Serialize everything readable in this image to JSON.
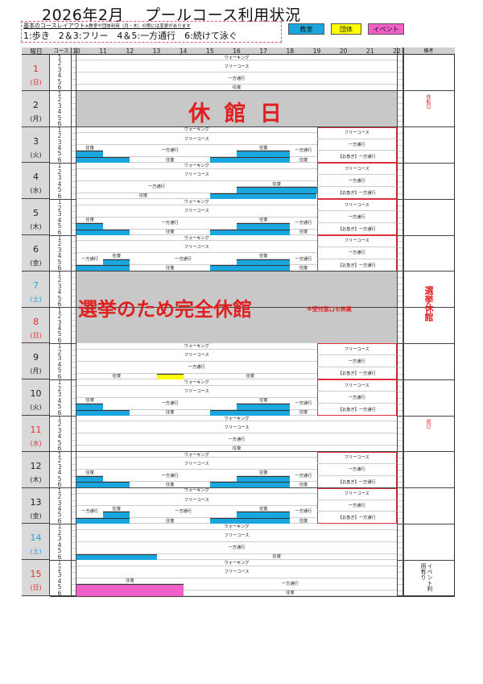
{
  "title": "2026年2月　 プールコース利用状況",
  "legend": {
    "heading": "基本のコースレイアウト",
    "note": "※教室や団体利用（月・木）の際には変更があります",
    "layout": "1:歩き　2＆3:フリー　4＆5:一方通行　6:続けて泳ぐ",
    "keys": [
      {
        "label": "教室",
        "color": "#1aa7e0"
      },
      {
        "label": "団体",
        "color": "#ffff00"
      },
      {
        "label": "イベント",
        "color": "#f060c8"
      }
    ]
  },
  "header": {
    "day": "曜日",
    "course": "コース",
    "hours": [
      10,
      11,
      12,
      13,
      14,
      15,
      16,
      17,
      18,
      19,
      20,
      21,
      22
    ],
    "remarks": "備考"
  },
  "lanes": [
    "1",
    "2",
    "3",
    "4",
    "5",
    "6"
  ],
  "colors": {
    "sunday": "#e53030",
    "saturday": "#2aa0e0",
    "weekday": "#222222",
    "closed": "#c8c8c8",
    "alert": "#e02020"
  },
  "patterns": {
    "standard": [
      {
        "lanes": [
          1,
          1
        ],
        "from": 10,
        "to": 22,
        "label": "ウォーキング"
      },
      {
        "lanes": [
          2,
          3
        ],
        "from": 10,
        "to": 22,
        "label": "フリーコース"
      },
      {
        "lanes": [
          4,
          5
        ],
        "from": 10,
        "to": 22,
        "label": "一方通行"
      },
      {
        "lanes": [
          6,
          6
        ],
        "from": 10,
        "to": 22,
        "label": "往復"
      }
    ],
    "tue_thu": [
      {
        "lanes": [
          1,
          1
        ],
        "from": 10,
        "to": 19,
        "label": "ウォーキング"
      },
      {
        "lanes": [
          2,
          3
        ],
        "from": 10,
        "to": 19,
        "label": "フリーコース"
      },
      {
        "lanes": [
          4,
          4
        ],
        "from": 10,
        "to": 11,
        "label": "往復"
      },
      {
        "lanes": [
          5,
          5
        ],
        "from": 10,
        "to": 11,
        "fill": "class"
      },
      {
        "lanes": [
          6,
          6
        ],
        "from": 10,
        "to": 12,
        "fill": "class"
      },
      {
        "lanes": [
          4,
          5
        ],
        "from": 11,
        "to": 16,
        "label": "一方通行"
      },
      {
        "lanes": [
          6,
          6
        ],
        "from": 12,
        "to": 15,
        "label": "往復"
      },
      {
        "lanes": [
          4,
          4
        ],
        "from": 16,
        "to": 18,
        "label": "往復"
      },
      {
        "lanes": [
          5,
          5
        ],
        "from": 16,
        "to": 18,
        "fill": "class"
      },
      {
        "lanes": [
          6,
          6
        ],
        "from": 15,
        "to": 18,
        "fill": "class"
      },
      {
        "lanes": [
          4,
          5
        ],
        "from": 18,
        "to": 19,
        "label": "一方通行"
      },
      {
        "lanes": [
          6,
          6
        ],
        "from": 18,
        "to": 19,
        "label": "往復"
      }
    ],
    "wed": [
      {
        "lanes": [
          1,
          1
        ],
        "from": 10,
        "to": 19,
        "label": "ウォーキング"
      },
      {
        "lanes": [
          2,
          3
        ],
        "from": 10,
        "to": 19,
        "label": "フリーコース"
      },
      {
        "lanes": [
          4,
          5
        ],
        "from": 10,
        "to": 16,
        "label": "一方通行"
      },
      {
        "lanes": [
          6,
          6
        ],
        "from": 10,
        "to": 15,
        "label": "往復"
      },
      {
        "lanes": [
          4,
          4
        ],
        "from": 16,
        "to": 19,
        "label": "往復"
      },
      {
        "lanes": [
          5,
          5
        ],
        "from": 16,
        "to": 19,
        "fill": "class"
      },
      {
        "lanes": [
          6,
          6
        ],
        "from": 15,
        "to": 19,
        "fill": "class"
      }
    ],
    "fri": [
      {
        "lanes": [
          1,
          1
        ],
        "from": 10,
        "to": 19,
        "label": "ウォーキング"
      },
      {
        "lanes": [
          2,
          3
        ],
        "from": 10,
        "to": 19,
        "label": "フリーコース"
      },
      {
        "lanes": [
          4,
          5
        ],
        "from": 10,
        "to": 11,
        "label": "一方通行"
      },
      {
        "lanes": [
          4,
          4
        ],
        "from": 11,
        "to": 12,
        "label": "往復"
      },
      {
        "lanes": [
          5,
          5
        ],
        "from": 11,
        "to": 12,
        "fill": "class"
      },
      {
        "lanes": [
          6,
          6
        ],
        "from": 10,
        "to": 12,
        "fill": "class"
      },
      {
        "lanes": [
          4,
          5
        ],
        "from": 12,
        "to": 16,
        "label": "一方通行"
      },
      {
        "lanes": [
          6,
          6
        ],
        "from": 12,
        "to": 15,
        "label": "往復"
      },
      {
        "lanes": [
          4,
          4
        ],
        "from": 16,
        "to": 18,
        "label": "往復"
      },
      {
        "lanes": [
          5,
          5
        ],
        "from": 16,
        "to": 18,
        "fill": "class"
      },
      {
        "lanes": [
          6,
          6
        ],
        "from": 15,
        "to": 18,
        "fill": "class"
      },
      {
        "lanes": [
          4,
          5
        ],
        "from": 18,
        "to": 19,
        "label": "一方通行"
      },
      {
        "lanes": [
          6,
          6
        ],
        "from": 18,
        "to": 19,
        "label": "往復"
      }
    ],
    "mon_group": [
      {
        "lanes": [
          1,
          1
        ],
        "from": 10,
        "to": 19,
        "label": "ウォーキング"
      },
      {
        "lanes": [
          2,
          3
        ],
        "from": 10,
        "to": 19,
        "label": "フリーコース"
      },
      {
        "lanes": [
          4,
          5
        ],
        "from": 10,
        "to": 19,
        "label": "一方通行"
      },
      {
        "lanes": [
          6,
          6
        ],
        "from": 10,
        "to": 13,
        "label": "往復"
      },
      {
        "lanes": [
          6,
          6
        ],
        "from": 13,
        "to": 14,
        "fill": "group"
      },
      {
        "lanes": [
          6,
          6
        ],
        "from": 14,
        "to": 19,
        "label": "往復"
      }
    ],
    "sat_class": [
      {
        "lanes": [
          1,
          1
        ],
        "from": 10,
        "to": 22,
        "label": "ウォーキング"
      },
      {
        "lanes": [
          2,
          3
        ],
        "from": 10,
        "to": 22,
        "label": "フリーコース"
      },
      {
        "lanes": [
          4,
          5
        ],
        "from": 10,
        "to": 22,
        "label": "一方通行"
      },
      {
        "lanes": [
          6,
          6
        ],
        "from": 10,
        "to": 13,
        "fill": "class"
      },
      {
        "lanes": [
          6,
          6
        ],
        "from": 13,
        "to": 22,
        "label": "往復"
      }
    ],
    "sun_event": [
      {
        "lanes": [
          1,
          1
        ],
        "from": 10,
        "to": 22,
        "label": "ウォーキング"
      },
      {
        "lanes": [
          2,
          3
        ],
        "from": 10,
        "to": 22,
        "label": "フリーコース"
      },
      {
        "lanes": [
          4,
          4
        ],
        "from": 10,
        "to": 14,
        "label": "往復"
      },
      {
        "lanes": [
          5,
          6
        ],
        "from": 10,
        "to": 14,
        "fill": "event"
      },
      {
        "lanes": [
          4,
          5
        ],
        "from": 14,
        "to": 22,
        "label": "一方通行"
      },
      {
        "lanes": [
          6,
          6
        ],
        "from": 14,
        "to": 22,
        "label": "往復"
      }
    ]
  },
  "evening": {
    "from": 19,
    "to": 22,
    "items": [
      "フリーコース",
      "一方通行",
      "【お急ぎ】一方通行"
    ]
  },
  "days": [
    {
      "day": "1",
      "weekday": "(日)",
      "type": "sunday",
      "pattern": "standard"
    },
    {
      "day": "2",
      "weekday": "(月)",
      "type": "weekday",
      "closed": "休 館 日",
      "remark": "休館日"
    },
    {
      "day": "3",
      "weekday": "(火)",
      "type": "weekday",
      "pattern": "tue_thu",
      "evening": true
    },
    {
      "day": "4",
      "weekday": "(水)",
      "type": "weekday",
      "pattern": "wed",
      "evening": true
    },
    {
      "day": "5",
      "weekday": "(木)",
      "type": "weekday",
      "pattern": "tue_thu",
      "evening": true
    },
    {
      "day": "6",
      "weekday": "(金)",
      "type": "weekday",
      "pattern": "fri",
      "evening": true
    },
    {
      "day": "7",
      "weekday": "(土)",
      "type": "saturday",
      "closed_span": true
    },
    {
      "day": "8",
      "weekday": "(日)",
      "type": "sunday",
      "closed_span": true
    },
    {
      "day": "9",
      "weekday": "(月)",
      "type": "weekday",
      "pattern": "mon_group",
      "evening": true
    },
    {
      "day": "10",
      "weekday": "(火)",
      "type": "weekday",
      "pattern": "tue_thu",
      "evening": true
    },
    {
      "day": "11",
      "weekday": "(水)",
      "type": "sunday",
      "pattern": "standard",
      "remark": "祝日"
    },
    {
      "day": "12",
      "weekday": "(木)",
      "type": "weekday",
      "pattern": "tue_thu",
      "evening": true
    },
    {
      "day": "13",
      "weekday": "(金)",
      "type": "weekday",
      "pattern": "fri",
      "evening": true
    },
    {
      "day": "14",
      "weekday": "(土)",
      "type": "saturday",
      "pattern": "sat_class"
    },
    {
      "day": "15",
      "weekday": "(日)",
      "type": "sunday",
      "pattern": "sun_event",
      "remark": "イベント利用有り"
    }
  ],
  "election": {
    "message": "選挙のため完全休館",
    "note": "※受付窓口も休業",
    "remark": "選挙休館"
  }
}
